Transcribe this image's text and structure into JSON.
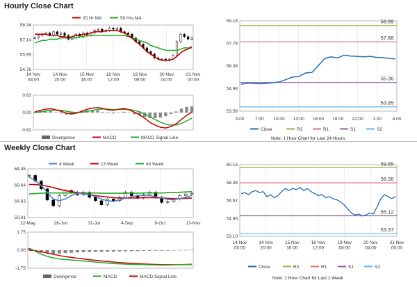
{
  "sections": {
    "hourly_title": "Hourly Close Chart",
    "weekly_title": "Weekly Close Chart"
  },
  "colors": {
    "ma_short": "#c00000",
    "ma_long": "#22aa22",
    "close": "#1f6fb5",
    "r2": "#88bb44",
    "r1": "#e07070",
    "s1": "#9060a0",
    "s2": "#5fb5e5",
    "week4": "#4a86c8",
    "divergence": "#666666"
  },
  "chart_data": [
    {
      "id": "hourly-candles",
      "type": "line",
      "title": "",
      "legend": [
        "20 Hr MA",
        "50 Hrs MA"
      ],
      "legend_placement": "top",
      "y_ticks": [
        "58.34",
        "57.14",
        "55.95",
        "54.76"
      ],
      "ylim": [
        54.76,
        58.34
      ],
      "x_ticks": [
        "14 Nov\n04:00",
        "14 Nov\n20:00",
        "15 Nov\n16:00",
        "18 Nov\n12:00",
        "19 Nov\n08:00",
        "20 Nov\n04:00",
        "21 Nov\n00:00"
      ],
      "series": [
        {
          "name": "Close",
          "values": [
            57.3,
            57.5,
            57.6,
            57.7,
            57.5,
            57.8,
            57.6,
            57.7,
            57.5,
            57.2,
            57.3,
            57.6,
            57.4,
            57.7,
            57.5,
            57.7,
            57.9,
            58.0,
            57.8,
            57.9,
            58.1,
            58.0,
            58.1,
            57.8,
            57.7,
            57.6,
            57.3,
            57.0,
            56.8,
            56.5,
            56.2,
            56.0,
            55.7,
            55.6,
            55.6,
            55.5,
            55.6,
            55.9,
            57.0,
            57.6,
            57.4,
            57.2,
            57.3
          ]
        },
        {
          "name": "20 Hr MA",
          "values": [
            57.6,
            57.6,
            57.6,
            57.6,
            57.5,
            57.5,
            57.5,
            57.4,
            57.4,
            57.3,
            57.4,
            57.5,
            57.5,
            57.6,
            57.6,
            57.7,
            57.8,
            57.8,
            57.8,
            57.9,
            57.9,
            57.9,
            57.9,
            57.8,
            57.7,
            57.5,
            57.3,
            57.0,
            56.8,
            56.5,
            56.2,
            56.0,
            55.8,
            55.6,
            55.5,
            55.5,
            55.5,
            55.6,
            55.8,
            56.1,
            56.3,
            56.4,
            56.6
          ]
        },
        {
          "name": "50 Hrs MA",
          "values": [
            56.9,
            57.0,
            57.1,
            57.1,
            57.2,
            57.2,
            57.2,
            57.3,
            57.3,
            57.3,
            57.3,
            57.3,
            57.4,
            57.4,
            57.5,
            57.5,
            57.5,
            57.5,
            57.5,
            57.5,
            57.5,
            57.5,
            57.5,
            57.5,
            57.5,
            57.4,
            57.3,
            57.2,
            57.1,
            57.0,
            56.9,
            56.7,
            56.6,
            56.5,
            56.4,
            56.3,
            56.3,
            56.3,
            56.3,
            56.4,
            56.5,
            56.5,
            56.5
          ]
        }
      ]
    },
    {
      "id": "hourly-macd",
      "type": "line",
      "y_ticks": [
        "0.62",
        "0.00",
        "-0.62"
      ],
      "ylim": [
        -0.62,
        0.62
      ],
      "legend": [
        "Divergence",
        "MACD",
        "MACD Signal Line"
      ],
      "legend_placement": "bottom",
      "series": [
        {
          "name": "MACD",
          "values": [
            0.02,
            0.08,
            0.12,
            0.14,
            0.1,
            0.05,
            -0.02,
            -0.05,
            -0.02,
            0.05,
            0.12,
            0.16,
            0.18,
            0.15,
            0.1,
            0.08,
            0.12,
            0.15,
            0.1,
            0.02,
            -0.08,
            -0.2,
            -0.35,
            -0.45,
            -0.52,
            -0.55,
            -0.5,
            -0.4,
            -0.25,
            -0.1,
            0.02
          ]
        },
        {
          "name": "MACD Signal Line",
          "values": [
            0.0,
            0.02,
            0.05,
            0.08,
            0.09,
            0.08,
            0.05,
            0.02,
            0.0,
            0.01,
            0.04,
            0.08,
            0.11,
            0.13,
            0.12,
            0.11,
            0.11,
            0.12,
            0.11,
            0.08,
            0.03,
            -0.05,
            -0.15,
            -0.25,
            -0.34,
            -0.42,
            -0.45,
            -0.44,
            -0.39,
            -0.3,
            -0.2
          ]
        },
        {
          "name": "Divergence",
          "values": [
            0.02,
            0.06,
            0.07,
            0.06,
            0.01,
            -0.03,
            -0.07,
            -0.07,
            -0.02,
            0.04,
            0.08,
            0.08,
            0.07,
            0.02,
            -0.02,
            -0.03,
            0.01,
            0.03,
            -0.01,
            -0.06,
            -0.11,
            -0.15,
            -0.2,
            -0.2,
            -0.18,
            -0.13,
            -0.05,
            0.04,
            0.14,
            0.2,
            0.22
          ]
        }
      ]
    },
    {
      "id": "hourly-close",
      "type": "line",
      "y_ticks": [
        "59.18",
        "57.78",
        "56.38",
        "54.98",
        "53.58"
      ],
      "ylim": [
        53.58,
        59.18
      ],
      "x_ticks": [
        "4:00",
        "7:00",
        "10:00",
        "13:00",
        "16:00",
        "19:00",
        "22:00",
        "1:00",
        "4:00"
      ],
      "levels": [
        {
          "name": "R2",
          "value": 58.89,
          "label": "58.89"
        },
        {
          "name": "R1",
          "value": 57.88,
          "label": "57.88"
        },
        {
          "name": "S1",
          "value": 55.36,
          "label": "55.36"
        },
        {
          "name": "S2",
          "value": 53.85,
          "label": "53.85"
        }
      ],
      "series": [
        {
          "name": "Close",
          "values": [
            55.25,
            55.32,
            55.3,
            55.28,
            55.3,
            55.35,
            55.4,
            55.55,
            55.7,
            55.72,
            55.95,
            55.98,
            56.4,
            56.85,
            56.95,
            56.88,
            57.05,
            57.0,
            56.98,
            56.95,
            56.98,
            56.92,
            56.9,
            56.85,
            56.82
          ]
        }
      ],
      "legend": [
        "Close",
        "R2",
        "R1",
        "S1",
        "S2"
      ],
      "legend_placement": "bottom",
      "note": "Note: 1 Hour Chart for Last 24 Hours"
    },
    {
      "id": "weekly-candles",
      "type": "line",
      "legend": [
        "4 Week",
        "13 Week",
        "40 Week"
      ],
      "legend_placement": "top",
      "y_ticks": [
        "64.45",
        "59.64",
        "54.83",
        "50.01"
      ],
      "ylim": [
        50.01,
        64.45
      ],
      "x_ticks": [
        "22-May",
        "26-Jun",
        "31-Jul",
        "4-Sep",
        "9-Oct",
        "13-Nov"
      ],
      "series": [
        {
          "name": "Close",
          "values": [
            62.5,
            60.8,
            58.5,
            55.2,
            53.5,
            56.5,
            58.0,
            57.5,
            56.8,
            57.5,
            56.0,
            55.0,
            53.8,
            55.5,
            55.0,
            56.0,
            57.5,
            56.5,
            55.8,
            56.8,
            57.5,
            56.0,
            54.5,
            54.8,
            55.5,
            56.5,
            57.0,
            57.2
          ]
        },
        {
          "name": "4 Week",
          "values": [
            62.0,
            61.0,
            59.5,
            57.5,
            55.5,
            55.0,
            55.5,
            56.5,
            57.2,
            57.0,
            56.8,
            56.2,
            55.5,
            55.0,
            54.8,
            55.2,
            55.8,
            56.2,
            56.5,
            56.6,
            56.5,
            56.2,
            55.8,
            55.4,
            55.3,
            55.6,
            56.0,
            56.6
          ]
        },
        {
          "name": "13 Week",
          "values": [
            59.8,
            59.8,
            59.6,
            59.3,
            58.9,
            58.4,
            58.0,
            57.7,
            57.4,
            57.1,
            56.8,
            56.5,
            56.3,
            56.1,
            55.9,
            55.8,
            55.8,
            55.8,
            55.8,
            55.9,
            55.9,
            55.9,
            55.8,
            55.7,
            55.6,
            55.6,
            55.7,
            55.8
          ]
        },
        {
          "name": "40 Week",
          "values": [
            57.0,
            57.1,
            57.2,
            57.3,
            57.3,
            57.3,
            57.3,
            57.3,
            57.3,
            57.3,
            57.3,
            57.3,
            57.2,
            57.2,
            57.2,
            57.2,
            57.2,
            57.2,
            57.2,
            57.3,
            57.3,
            57.3,
            57.3,
            57.4,
            57.4,
            57.5,
            57.6,
            57.7
          ]
        }
      ]
    },
    {
      "id": "weekly-macd",
      "type": "line",
      "y_ticks": [
        "1.75",
        "0.00",
        "-1.75"
      ],
      "ylim": [
        -1.75,
        1.75
      ],
      "legend": [
        "Divergence",
        "MACD",
        "MACD Signal Line"
      ],
      "legend_placement": "bottom",
      "series": [
        {
          "name": "MACD",
          "values": [
            0.2,
            -0.1,
            -0.4,
            -0.6,
            -0.75,
            -0.85,
            -0.9,
            -0.95,
            -1.0,
            -1.05,
            -1.1,
            -1.15,
            -1.2,
            -1.25,
            -1.3,
            -1.32,
            -1.35,
            -1.38,
            -1.4,
            -1.4,
            -1.42,
            -1.43,
            -1.45,
            -1.45,
            -1.42,
            -1.4,
            -1.38,
            -1.35
          ]
        },
        {
          "name": "MACD Signal Line",
          "values": [
            0.0,
            -0.05,
            -0.15,
            -0.28,
            -0.4,
            -0.52,
            -0.62,
            -0.7,
            -0.78,
            -0.85,
            -0.92,
            -0.98,
            -1.04,
            -1.1,
            -1.15,
            -1.2,
            -1.24,
            -1.28,
            -1.31,
            -1.34,
            -1.36,
            -1.38,
            -1.4,
            -1.41,
            -1.41,
            -1.41,
            -1.4,
            -1.39
          ]
        },
        {
          "name": "Divergence",
          "values": [
            0.2,
            -0.05,
            -0.25,
            -0.32,
            -0.35,
            -0.33,
            -0.28,
            -0.25,
            -0.22,
            -0.2,
            -0.18,
            -0.17,
            -0.16,
            -0.15,
            -0.15,
            -0.12,
            -0.11,
            -0.1,
            -0.09,
            -0.06,
            -0.06,
            -0.05,
            -0.05,
            -0.04,
            -0.01,
            0.01,
            0.02,
            0.04
          ]
        }
      ]
    },
    {
      "id": "weekly-close",
      "type": "line",
      "y_ticks": [
        "60.15",
        "58.38",
        "56.62",
        "54.86",
        "53.10"
      ],
      "ylim": [
        53.1,
        60.15
      ],
      "x_ticks": [
        "14 Nov\n00:00",
        "14 Nov\n20:00",
        "15 Nov\n16:00",
        "18 Nov\n12:00",
        "19 Nov\n08:00",
        "20 Nov\n04:00",
        "21 Nov\n00:00"
      ],
      "levels": [
        {
          "name": "R2",
          "value": 59.85,
          "label": "59.85"
        },
        {
          "name": "R1",
          "value": 58.36,
          "label": "58.36"
        },
        {
          "name": "S1",
          "value": 55.12,
          "label": "55.12"
        },
        {
          "name": "S2",
          "value": 53.37,
          "label": "53.37"
        }
      ],
      "series": [
        {
          "name": "Close",
          "values": [
            57.3,
            57.4,
            57.2,
            57.5,
            57.6,
            57.4,
            57.5,
            57.0,
            57.2,
            56.9,
            57.1,
            57.5,
            57.8,
            57.6,
            57.8,
            57.7,
            57.9,
            57.6,
            57.8,
            57.5,
            57.3,
            57.1,
            57.2,
            56.9,
            57.0,
            56.8,
            56.7,
            56.5,
            56.2,
            55.8,
            55.4,
            55.2,
            55.3,
            55.1,
            55.2,
            55.4,
            55.3,
            56.0,
            56.8,
            57.2,
            57.0,
            56.8,
            57.0
          ]
        }
      ],
      "legend": [
        "Close",
        "R2",
        "R1",
        "S1",
        "S2"
      ],
      "legend_placement": "bottom",
      "note": "Note: 1 Hour Chart for Last 1 Week"
    }
  ]
}
